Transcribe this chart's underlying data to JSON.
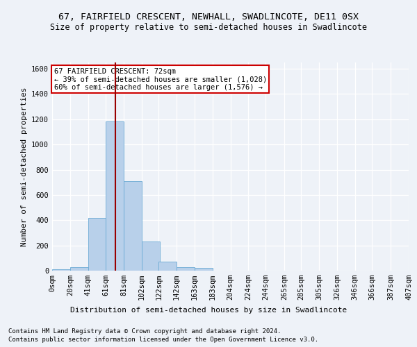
{
  "title1": "67, FAIRFIELD CRESCENT, NEWHALL, SWADLINCOTE, DE11 0SX",
  "title2": "Size of property relative to semi-detached houses in Swadlincote",
  "xlabel": "Distribution of semi-detached houses by size in Swadlincote",
  "ylabel": "Number of semi-detached properties",
  "footer1": "Contains HM Land Registry data © Crown copyright and database right 2024.",
  "footer2": "Contains public sector information licensed under the Open Government Licence v3.0.",
  "property_label": "67 FAIRFIELD CRESCENT: 72sqm",
  "annotation_line1": "← 39% of semi-detached houses are smaller (1,028)",
  "annotation_line2": "60% of semi-detached houses are larger (1,576) →",
  "bin_width": 20.5,
  "bin_starts": [
    0,
    20.5,
    41,
    61.5,
    82,
    102.5,
    122,
    142.5,
    163,
    183.5,
    204,
    224.5,
    244,
    265.5,
    285,
    305.5,
    326,
    346.5,
    366,
    387.5
  ],
  "bin_labels": [
    "0sqm",
    "20sqm",
    "41sqm",
    "61sqm",
    "81sqm",
    "102sqm",
    "122sqm",
    "142sqm",
    "163sqm",
    "183sqm",
    "204sqm",
    "224sqm",
    "244sqm",
    "265sqm",
    "285sqm",
    "305sqm",
    "326sqm",
    "346sqm",
    "366sqm",
    "387sqm",
    "407sqm"
  ],
  "counts": [
    10,
    25,
    420,
    1180,
    710,
    230,
    70,
    30,
    20,
    0,
    0,
    0,
    0,
    0,
    0,
    0,
    0,
    0,
    0,
    0
  ],
  "bar_color": "#b8d0ea",
  "bar_edge_color": "#6aaad4",
  "vline_color": "#990000",
  "vline_x": 72,
  "xlim_min": 0,
  "xlim_max": 408,
  "ylim": [
    0,
    1650
  ],
  "yticks": [
    0,
    200,
    400,
    600,
    800,
    1000,
    1200,
    1400,
    1600
  ],
  "background_color": "#eef2f8",
  "grid_color": "#ffffff",
  "annotation_box_bg": "#ffffff",
  "annotation_box_edge": "#cc0000",
  "title1_fontsize": 9.5,
  "title2_fontsize": 8.5,
  "axis_label_fontsize": 8,
  "tick_fontsize": 7.5,
  "footer_fontsize": 6.5,
  "annot_fontsize": 7.5
}
